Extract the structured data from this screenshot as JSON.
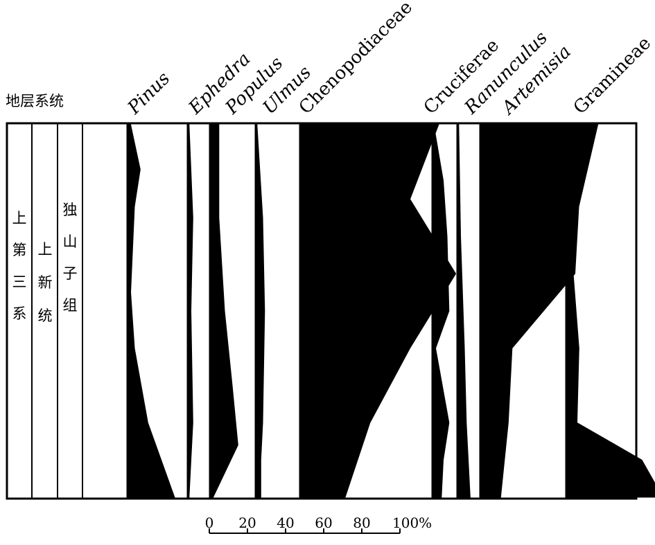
{
  "chart_data": {
    "type": "area",
    "title": "",
    "strata": {
      "header": "地层系统",
      "columns": [
        "上第三系",
        "上新统",
        "独山子组"
      ]
    },
    "taxa": [
      {
        "name": "Pinus",
        "italic": true,
        "profile": [
          [
            0.0,
            2
          ],
          [
            0.12,
            7
          ],
          [
            0.22,
            4
          ],
          [
            0.45,
            2
          ],
          [
            0.6,
            4
          ],
          [
            0.8,
            11
          ],
          [
            1.0,
            25
          ]
        ]
      },
      {
        "name": "Ephedra",
        "italic": true,
        "profile": [
          [
            0.0,
            1
          ],
          [
            0.25,
            3
          ],
          [
            0.5,
            2
          ],
          [
            0.8,
            3
          ],
          [
            0.9,
            2
          ],
          [
            1.0,
            1
          ]
        ]
      },
      {
        "name": "Populus",
        "italic": true,
        "profile": [
          [
            0.0,
            5
          ],
          [
            0.25,
            5
          ],
          [
            0.5,
            8
          ],
          [
            0.7,
            12
          ],
          [
            0.86,
            15
          ],
          [
            1.0,
            2
          ]
        ]
      },
      {
        "name": "Ulmus",
        "italic": true,
        "profile": [
          [
            0.0,
            1
          ],
          [
            0.25,
            4
          ],
          [
            0.5,
            5
          ],
          [
            0.8,
            4
          ],
          [
            0.9,
            3
          ],
          [
            1.0,
            3
          ]
        ]
      },
      {
        "name": "Chenopodiaceae",
        "italic": false,
        "profile": [
          [
            0.0,
            73
          ],
          [
            0.2,
            58
          ],
          [
            0.4,
            82
          ],
          [
            0.6,
            58
          ],
          [
            0.8,
            37
          ],
          [
            1.0,
            24
          ]
        ]
      },
      {
        "name": "Cruciferae",
        "italic": false,
        "profile": [
          [
            0.0,
            1
          ],
          [
            0.15,
            6
          ],
          [
            0.3,
            8
          ],
          [
            0.5,
            9
          ],
          [
            0.6,
            2
          ],
          [
            0.8,
            9
          ],
          [
            0.9,
            6
          ],
          [
            1.0,
            5
          ]
        ]
      },
      {
        "name": "Ranunculus",
        "italic": true,
        "profile": [
          [
            0.0,
            1
          ],
          [
            0.3,
            2
          ],
          [
            0.6,
            4
          ],
          [
            0.8,
            5
          ],
          [
            1.0,
            7
          ]
        ]
      },
      {
        "name": "Artemisia",
        "italic": true,
        "profile": [
          [
            0.0,
            62
          ],
          [
            0.22,
            52
          ],
          [
            0.4,
            50
          ],
          [
            0.6,
            17
          ],
          [
            0.8,
            15
          ],
          [
            1.0,
            11
          ]
        ]
      },
      {
        "name": "Gramineae",
        "italic": false,
        "profile": [
          [
            0.0,
            4
          ],
          [
            0.2,
            3
          ],
          [
            0.4,
            4
          ],
          [
            0.6,
            7
          ],
          [
            0.8,
            6
          ],
          [
            0.9,
            40
          ],
          [
            1.0,
            51
          ]
        ]
      }
    ],
    "scale": {
      "ticks": [
        "0",
        "20",
        "40",
        "60",
        "80",
        "100%"
      ]
    },
    "xlim": [
      0,
      100
    ],
    "grid": false,
    "legend": "none"
  }
}
